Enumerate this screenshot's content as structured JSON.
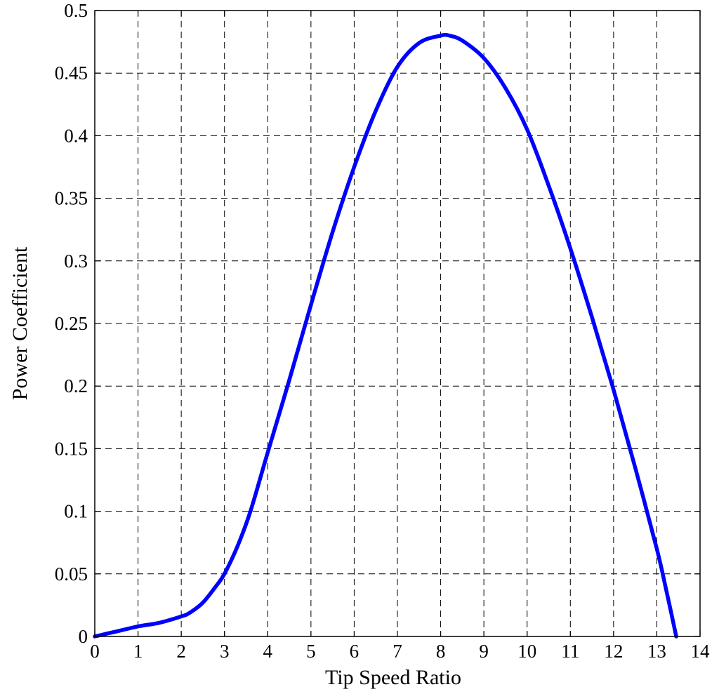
{
  "chart_data": {
    "type": "line",
    "title": "",
    "xlabel": "Tip Speed Ratio",
    "ylabel": "Power Coefficient",
    "xlim": [
      0,
      14
    ],
    "ylim": [
      0,
      0.5
    ],
    "xticks": [
      0,
      1,
      2,
      3,
      4,
      5,
      6,
      7,
      8,
      9,
      10,
      11,
      12,
      13,
      14
    ],
    "yticks": [
      0,
      0.05,
      0.1,
      0.15,
      0.2,
      0.25,
      0.3,
      0.35,
      0.4,
      0.45,
      0.5
    ],
    "xtick_labels": [
      "0",
      "1",
      "2",
      "3",
      "4",
      "5",
      "6",
      "7",
      "8",
      "9",
      "10",
      "11",
      "12",
      "13",
      "14"
    ],
    "ytick_labels": [
      "0",
      "0.05",
      "0.1",
      "0.15",
      "0.2",
      "0.25",
      "0.3",
      "0.35",
      "0.4",
      "0.45",
      "0.5"
    ],
    "grid": true,
    "legend": false,
    "series": [
      {
        "color": "#0000ff",
        "x": [
          0,
          0.5,
          1,
          1.5,
          2,
          2.2,
          2.5,
          2.8,
          3,
          3.3,
          3.6,
          4,
          4.5,
          5,
          5.5,
          6,
          6.5,
          7,
          7.5,
          8,
          8.2,
          8.5,
          9,
          9.5,
          10,
          10.5,
          11,
          11.5,
          12,
          12.5,
          13,
          13.2,
          13.45
        ],
        "y": [
          0,
          0.004,
          0.008,
          0.011,
          0.016,
          0.019,
          0.027,
          0.04,
          0.05,
          0.072,
          0.1,
          0.147,
          0.205,
          0.265,
          0.323,
          0.375,
          0.42,
          0.455,
          0.474,
          0.48,
          0.48,
          0.476,
          0.462,
          0.438,
          0.405,
          0.36,
          0.31,
          0.255,
          0.197,
          0.135,
          0.07,
          0.04,
          0
        ]
      }
    ]
  }
}
